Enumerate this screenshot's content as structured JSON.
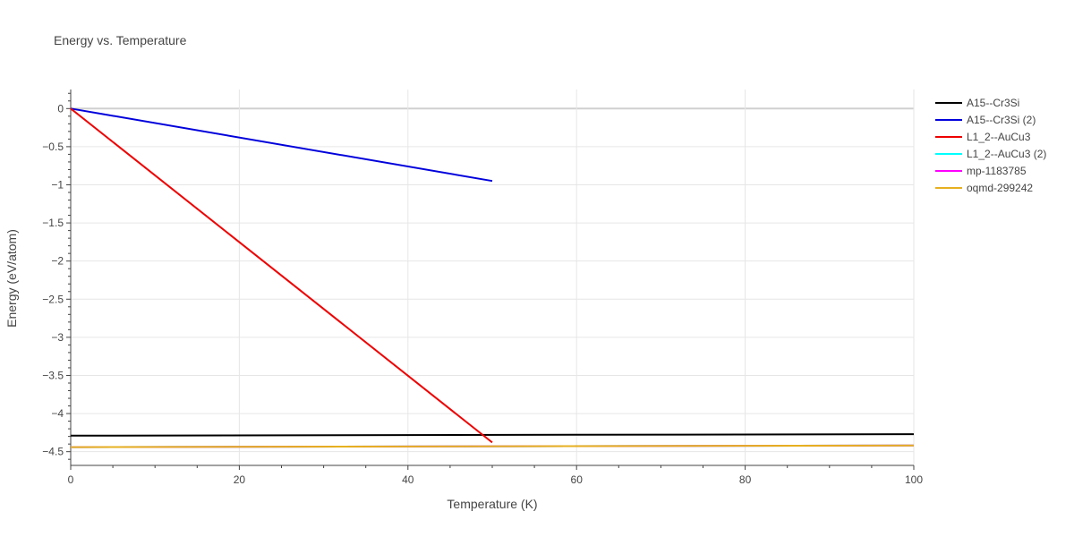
{
  "chart_data": {
    "type": "line",
    "title": "Energy vs. Temperature",
    "xlabel": "Temperature (K)",
    "ylabel": "Energy (eV/atom)",
    "xlim": [
      0,
      100
    ],
    "ylim": [
      -4.68,
      0.25
    ],
    "x_ticks": [
      0,
      20,
      40,
      60,
      80,
      100
    ],
    "x_tick_labels": [
      "0",
      "20",
      "40",
      "60",
      "80",
      "100"
    ],
    "y_ticks": [
      0,
      -0.5,
      -1,
      -1.5,
      -2,
      -2.5,
      -3,
      -3.5,
      -4,
      -4.5
    ],
    "y_tick_labels": [
      "0",
      "−0.5",
      "−1",
      "−1.5",
      "−2",
      "−2.5",
      "−3",
      "−3.5",
      "−4",
      "−4.5"
    ],
    "grid": true,
    "legend_position": "right",
    "series": [
      {
        "name": "A15--Cr3Si",
        "color": "#000000",
        "x": [
          0,
          100
        ],
        "y": [
          -4.29,
          -4.27
        ]
      },
      {
        "name": "A15--Cr3Si (2)",
        "color": "#0000dd",
        "x": [
          0,
          50
        ],
        "y": [
          0,
          -0.95
        ]
      },
      {
        "name": "L1_2--AuCu3",
        "color": "#ee0000",
        "x": [
          0,
          50
        ],
        "y": [
          0,
          -4.38
        ]
      },
      {
        "name": "L1_2--AuCu3 (2)",
        "color": "#00ffff",
        "x": [
          0,
          100
        ],
        "y": [
          -4.44,
          -4.42
        ]
      },
      {
        "name": "mp-1183785",
        "color": "#ff00ff",
        "x": [
          0,
          100
        ],
        "y": [
          -4.44,
          -4.42
        ]
      },
      {
        "name": "oqmd-299242",
        "color": "#e6b020",
        "x": [
          0,
          100
        ],
        "y": [
          -4.44,
          -4.42
        ]
      }
    ]
  }
}
